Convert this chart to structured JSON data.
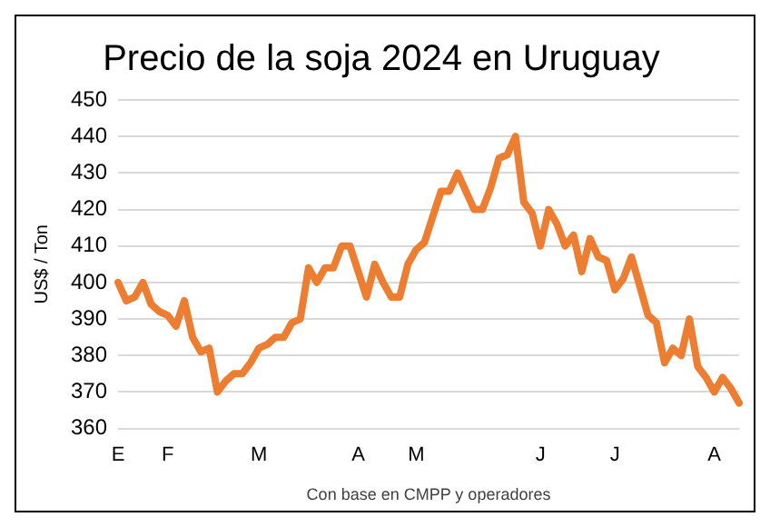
{
  "chart_data": {
    "type": "line",
    "title": "Precio de la soja 2024 en Uruguay",
    "ylabel": "US$ / Ton",
    "categories": [
      "E",
      null,
      null,
      null,
      null,
      null,
      "F",
      null,
      null,
      null,
      null,
      null,
      null,
      null,
      null,
      null,
      null,
      "M",
      null,
      null,
      null,
      null,
      null,
      null,
      null,
      null,
      null,
      null,
      null,
      "A",
      null,
      null,
      null,
      null,
      null,
      null,
      "M",
      null,
      null,
      null,
      null,
      null,
      null,
      null,
      null,
      null,
      null,
      null,
      null,
      null,
      null,
      "J",
      null,
      null,
      null,
      null,
      null,
      null,
      null,
      null,
      "J",
      null,
      null,
      null,
      null,
      null,
      null,
      null,
      null,
      null,
      null,
      null,
      "A",
      null,
      null,
      null
    ],
    "series": [
      {
        "color": "#ed7d31",
        "values": [
          400,
          395,
          396,
          400,
          394,
          392,
          391,
          388,
          395,
          385,
          381,
          382,
          370,
          373,
          375,
          375,
          378,
          382,
          383,
          385,
          385,
          389,
          390,
          404,
          400,
          404,
          404,
          410,
          410,
          403,
          396,
          405,
          400,
          396,
          396,
          405,
          409,
          411,
          418,
          425,
          425,
          430,
          425,
          420,
          420,
          426,
          434,
          435,
          440,
          422,
          419,
          410,
          420,
          416,
          410,
          413,
          403,
          412,
          407,
          406,
          398,
          401,
          407,
          399,
          391,
          389,
          378,
          382,
          380,
          390,
          377,
          374,
          370,
          374,
          371,
          367
        ]
      }
    ],
    "ylim": [
      360,
      450
    ],
    "yticks": [
      360,
      370,
      380,
      390,
      400,
      410,
      420,
      430,
      440,
      450
    ],
    "grid": "y",
    "marker": "none",
    "line_style": "solid",
    "annotations": [
      "Con base en CMPP y operadores"
    ]
  }
}
